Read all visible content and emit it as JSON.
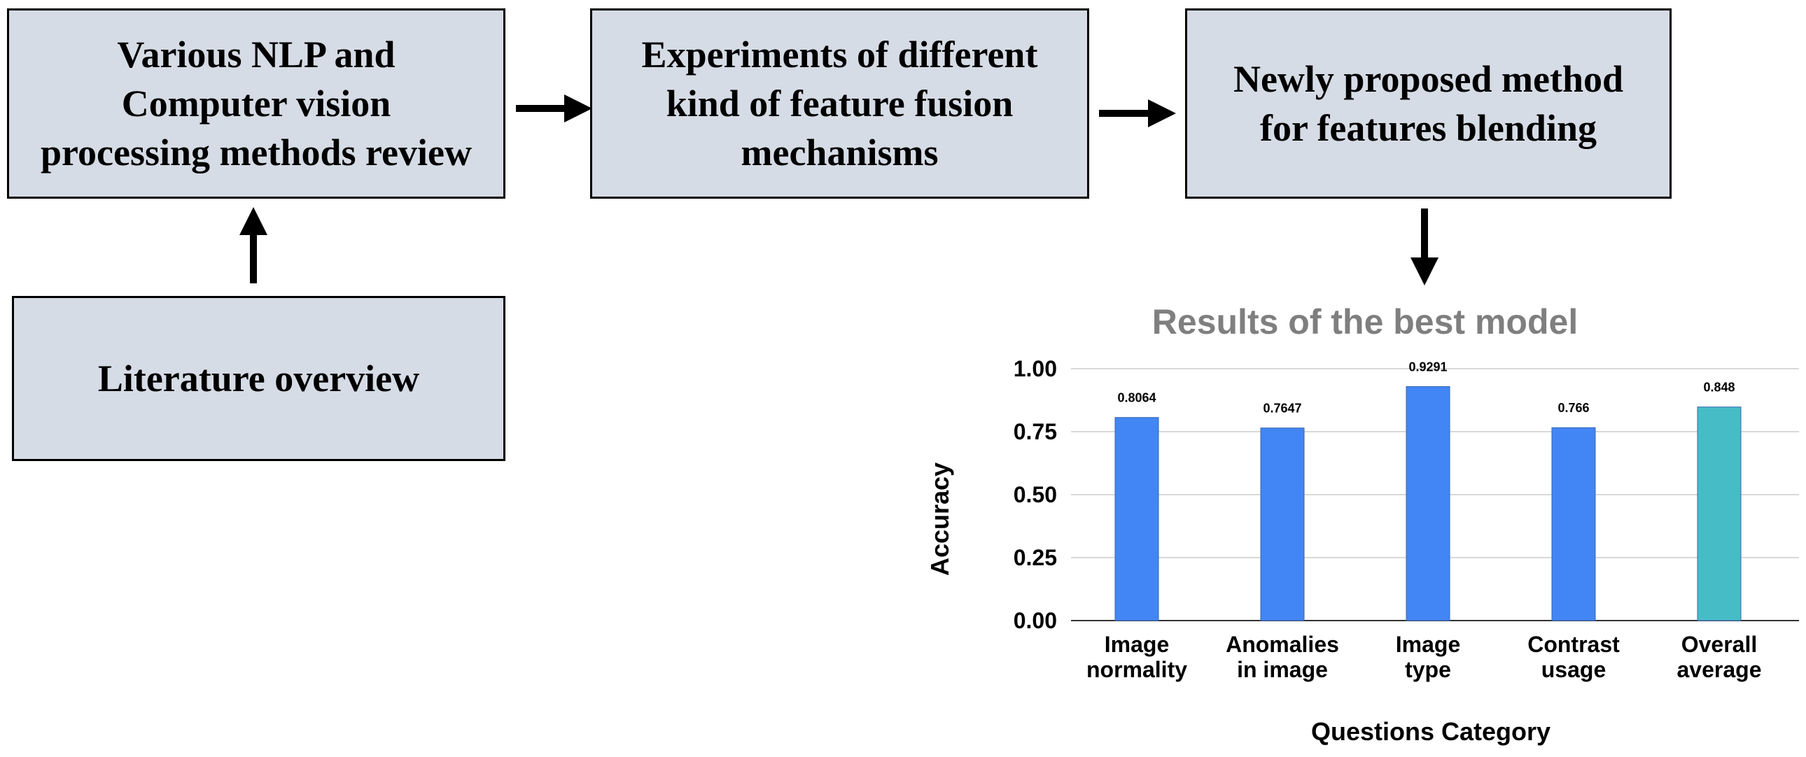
{
  "boxes": {
    "nlp_review": "Various NLP and\nComputer vision\nprocessing methods review",
    "fusion_experiments": "Experiments of different\nkind of feature fusion\nmechanisms",
    "proposed_method": "Newly proposed method\nfor features blending",
    "literature": "Literature overview"
  },
  "chart_data": {
    "type": "bar",
    "title": "Results of the best model",
    "xlabel": "Questions Category",
    "ylabel": "Accuracy",
    "ylim": [
      0,
      1
    ],
    "yticks": [
      "0.00",
      "0.25",
      "0.50",
      "0.75",
      "1.00"
    ],
    "grid": true,
    "categories": [
      [
        "Image",
        "normality"
      ],
      [
        "Anomalies",
        "in image"
      ],
      [
        "Image",
        "type"
      ],
      [
        "Contrast",
        "usage"
      ],
      [
        "Overall",
        "average"
      ]
    ],
    "values": [
      0.8064,
      0.7647,
      0.9291,
      0.766,
      0.848
    ],
    "data_labels": [
      "0.8064",
      "0.7647",
      "0.9291",
      "0.766",
      "0.848"
    ],
    "colors": [
      "#4285f4",
      "#4285f4",
      "#4285f4",
      "#4285f4",
      "#46bdc6"
    ]
  }
}
